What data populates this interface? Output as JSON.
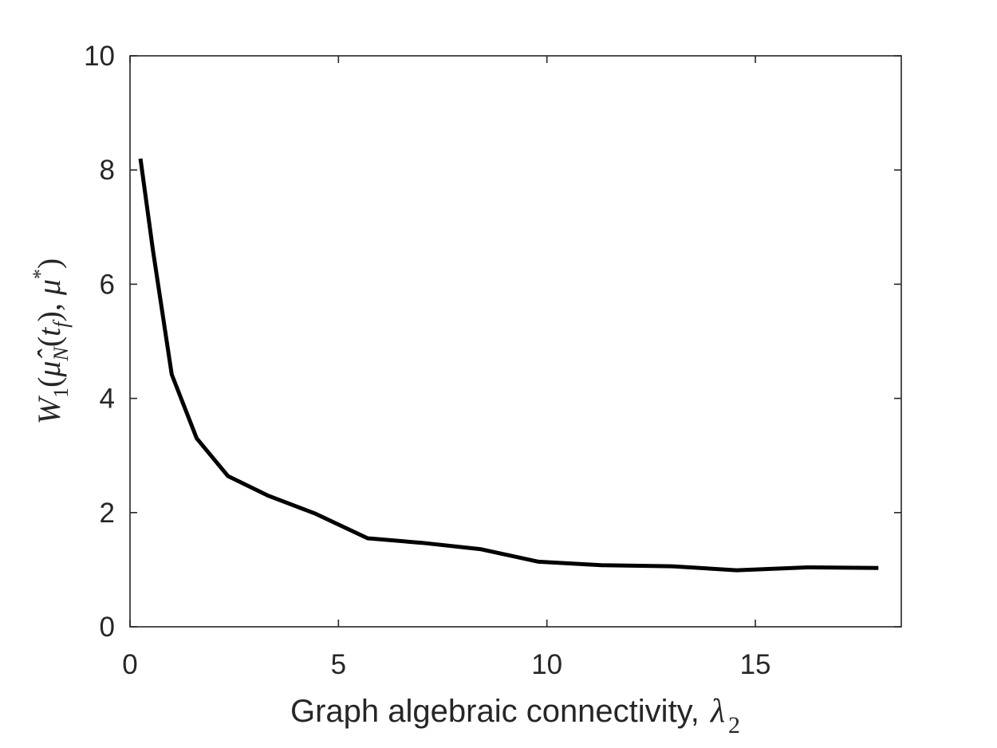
{
  "chart_data": {
    "type": "line",
    "xlabel": "Graph algebraic connectivity, λ2",
    "xlabel_text": "Graph algebraic connectivity,",
    "xlabel_symbol": "λ",
    "xlabel_subscript": "2",
    "ylabel": "W1(μ̂N(tf), μ*)",
    "xlim": [
      0,
      18.5
    ],
    "ylim": [
      0,
      10
    ],
    "xticks": [
      0,
      5,
      10,
      15
    ],
    "yticks": [
      0,
      2,
      4,
      6,
      8,
      10
    ],
    "xtick_labels": [
      "0",
      "5",
      "10",
      "15"
    ],
    "ytick_labels": [
      "0",
      "2",
      "4",
      "6",
      "8",
      "10"
    ],
    "grid": false,
    "series": [
      {
        "color": "#000000",
        "x": [
          0.25,
          0.55,
          1.0,
          1.6,
          2.35,
          3.3,
          4.45,
          5.7,
          7.0,
          8.4,
          9.8,
          11.3,
          13.0,
          14.55,
          16.25,
          17.95
        ],
        "y": [
          8.2,
          6.6,
          4.42,
          3.3,
          2.64,
          2.3,
          1.98,
          1.55,
          1.47,
          1.36,
          1.14,
          1.08,
          1.06,
          0.99,
          1.04,
          1.03
        ]
      }
    ]
  }
}
